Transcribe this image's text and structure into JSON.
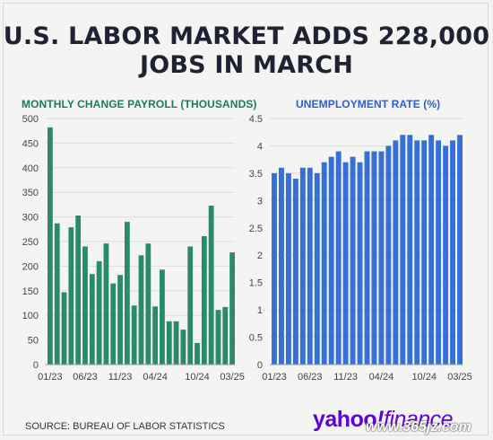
{
  "title_line1": "U.S. LABOR MARKET ADDS 228,000",
  "title_line2": "JOBS IN MARCH",
  "source": "SOURCE: BUREAU OF LABOR STATISTICS",
  "logo": {
    "text_main": "yahoo",
    "text_slash": "!",
    "text_fin": "finance"
  },
  "watermark": "www.365jz.com",
  "chart_data": [
    {
      "type": "bar",
      "title": "MONTHLY CHANGE PAYROLL (THOUSANDS)",
      "color": "#2a8a6a",
      "ylim": [
        0,
        500
      ],
      "yticks": [
        0,
        50,
        100,
        150,
        200,
        250,
        300,
        350,
        400,
        450,
        500
      ],
      "xtick_labels": [
        "01/23",
        "06/23",
        "11/23",
        "04/24",
        "10/24",
        "03/25"
      ],
      "xtick_index": [
        0,
        5,
        10,
        15,
        21,
        26
      ],
      "values": [
        482,
        287,
        147,
        279,
        303,
        240,
        184,
        210,
        246,
        165,
        182,
        290,
        120,
        222,
        246,
        118,
        193,
        88,
        88,
        71,
        240,
        44,
        261,
        323,
        111,
        117,
        228
      ]
    },
    {
      "type": "bar",
      "title": "UNEMPLOYMENT RATE (%)",
      "color": "#3470d8",
      "ylim": [
        0,
        4.5
      ],
      "yticks": [
        0,
        0.5,
        1,
        1.5,
        2,
        2.5,
        3,
        3.5,
        4,
        4.5
      ],
      "xtick_labels": [
        "01/23",
        "06/23",
        "11/23",
        "04/24",
        "10/24",
        "03/25"
      ],
      "xtick_index": [
        0,
        5,
        10,
        15,
        21,
        26
      ],
      "values": [
        3.5,
        3.6,
        3.5,
        3.4,
        3.6,
        3.6,
        3.5,
        3.7,
        3.8,
        3.9,
        3.7,
        3.8,
        3.7,
        3.9,
        3.9,
        3.9,
        4.0,
        4.1,
        4.2,
        4.2,
        4.1,
        4.1,
        4.2,
        4.1,
        4.0,
        4.1,
        4.2
      ]
    }
  ]
}
